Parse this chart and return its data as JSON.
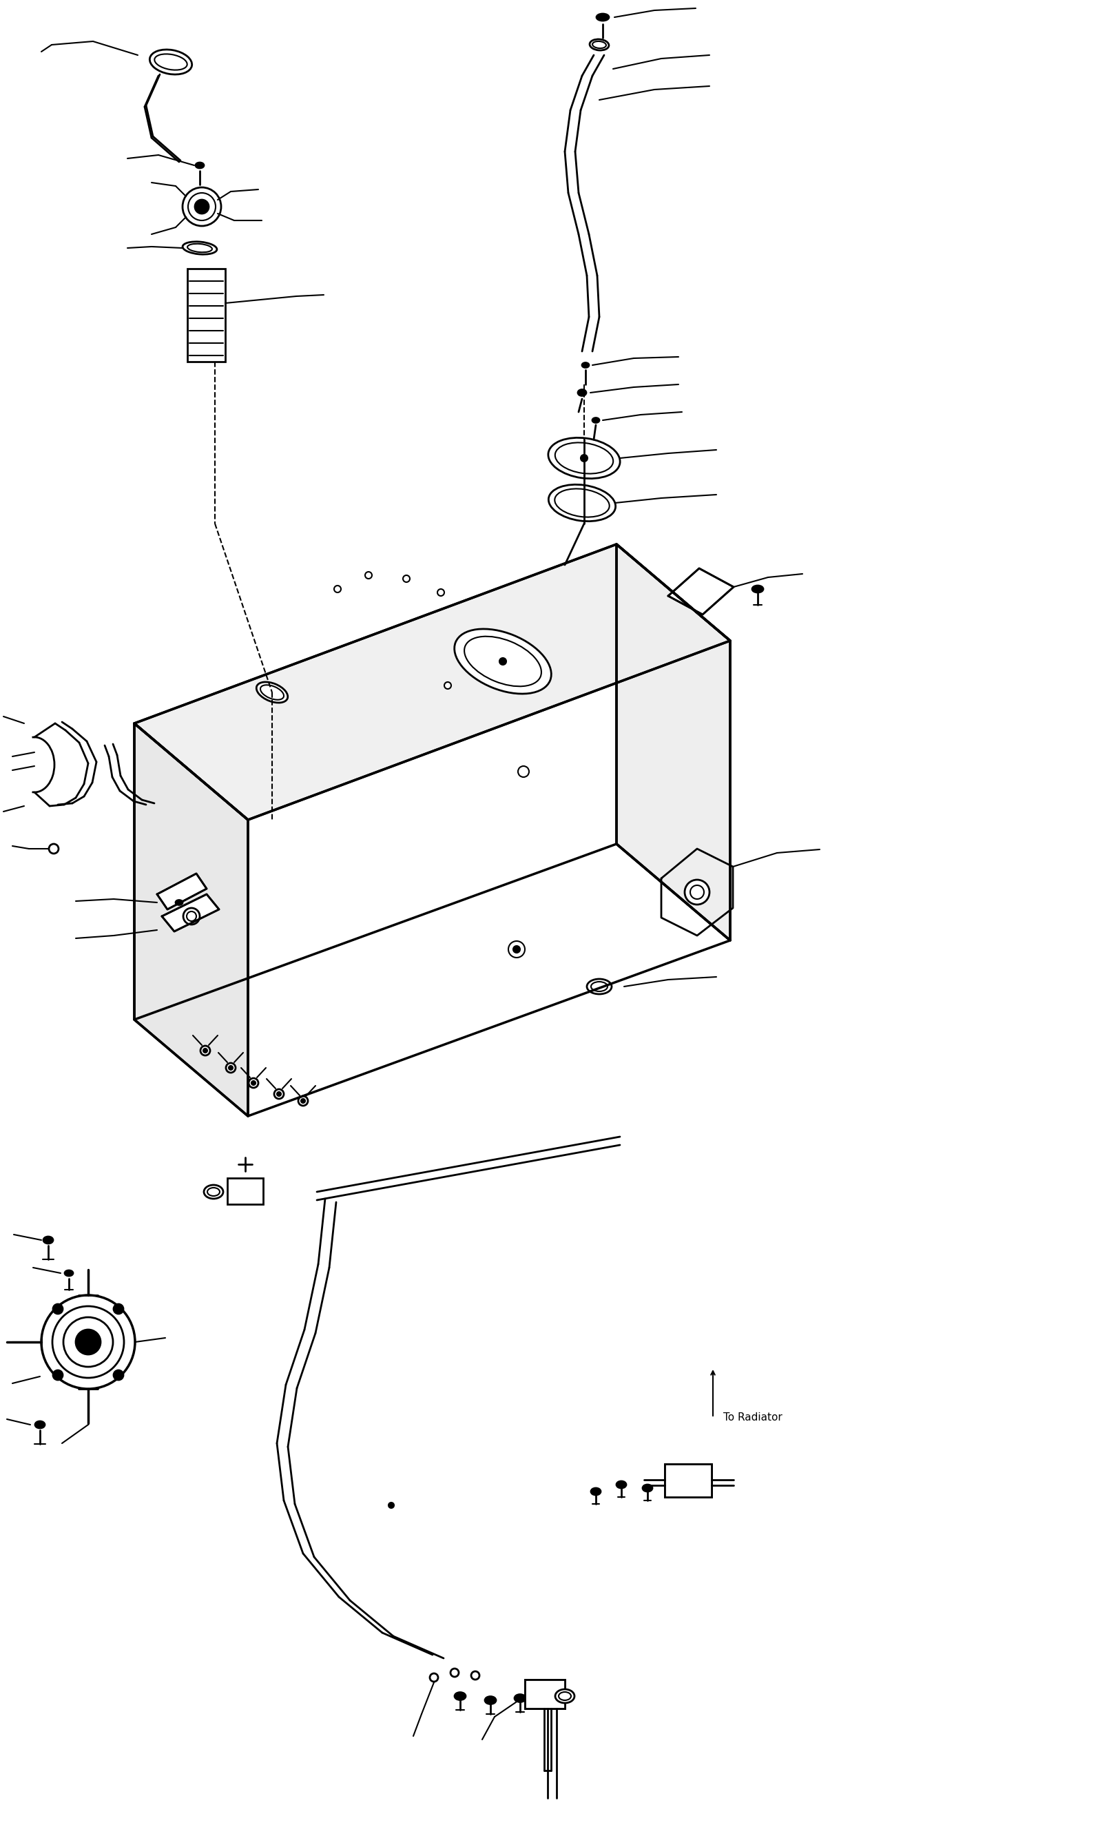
{
  "title": "",
  "background_color": "#ffffff",
  "line_color": "#000000",
  "annotation_text": "To Radiator",
  "fig_width": 16.1,
  "fig_height": 26.81
}
